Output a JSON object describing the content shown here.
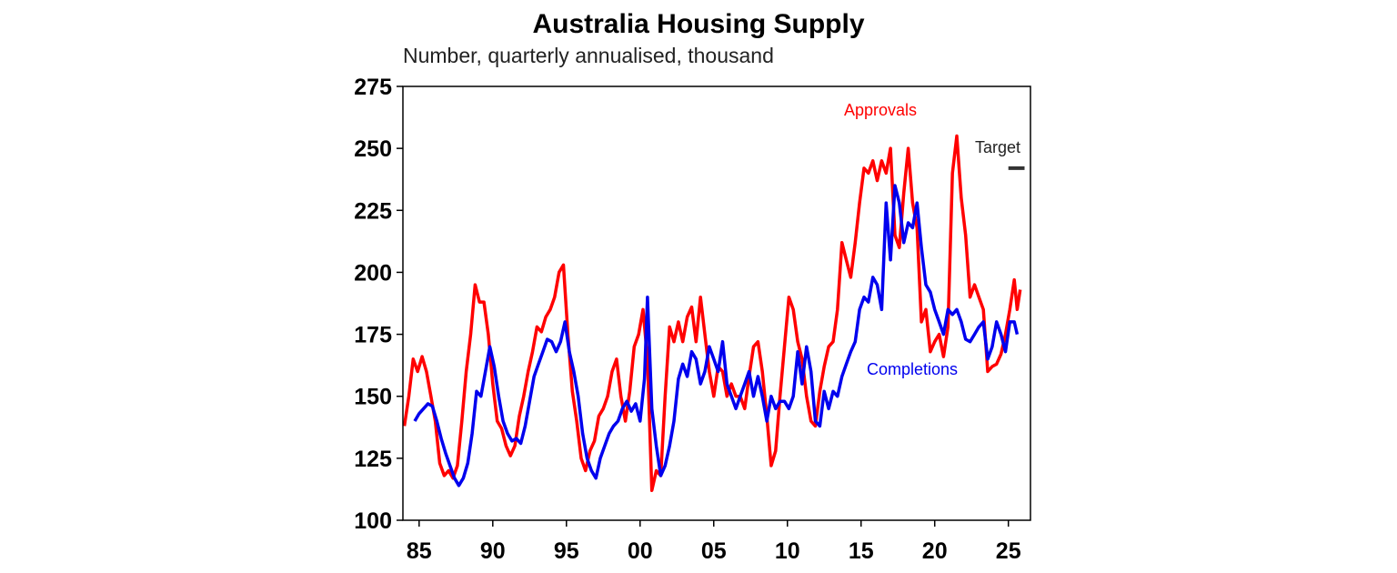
{
  "chart_data": {
    "type": "line",
    "title": "Australia Housing Supply",
    "subtitle": "Number, quarterly annualised, thousand",
    "ylim": [
      100,
      275
    ],
    "yticks": [
      "100",
      "125",
      "150",
      "175",
      "200",
      "225",
      "250",
      "275"
    ],
    "xlim": [
      1983.9,
      2026.5
    ],
    "xticks": [
      {
        "x": 1985,
        "label": "85"
      },
      {
        "x": 1990,
        "label": "90"
      },
      {
        "x": 1995,
        "label": "95"
      },
      {
        "x": 2000,
        "label": "00"
      },
      {
        "x": 2005,
        "label": "05"
      },
      {
        "x": 2010,
        "label": "10"
      },
      {
        "x": 2015,
        "label": "15"
      },
      {
        "x": 2020,
        "label": "20"
      },
      {
        "x": 2025,
        "label": "25"
      }
    ],
    "grid": false,
    "series": [
      {
        "name": "Approvals",
        "color": "#ff0000",
        "points": [
          [
            1984.0,
            138
          ],
          [
            1984.3,
            150
          ],
          [
            1984.6,
            165
          ],
          [
            1984.9,
            160
          ],
          [
            1985.2,
            166
          ],
          [
            1985.5,
            160
          ],
          [
            1985.8,
            150
          ],
          [
            1986.1,
            140
          ],
          [
            1986.4,
            123
          ],
          [
            1986.7,
            118
          ],
          [
            1987.0,
            120
          ],
          [
            1987.3,
            117
          ],
          [
            1987.6,
            122
          ],
          [
            1987.9,
            140
          ],
          [
            1988.2,
            160
          ],
          [
            1988.5,
            175
          ],
          [
            1988.8,
            195
          ],
          [
            1989.1,
            188
          ],
          [
            1989.4,
            188
          ],
          [
            1989.7,
            175
          ],
          [
            1990.0,
            155
          ],
          [
            1990.3,
            140
          ],
          [
            1990.6,
            137
          ],
          [
            1990.9,
            130
          ],
          [
            1991.2,
            126
          ],
          [
            1991.5,
            130
          ],
          [
            1991.8,
            142
          ],
          [
            1992.1,
            150
          ],
          [
            1992.4,
            160
          ],
          [
            1992.7,
            168
          ],
          [
            1993.0,
            178
          ],
          [
            1993.3,
            176
          ],
          [
            1993.6,
            182
          ],
          [
            1993.9,
            185
          ],
          [
            1994.2,
            190
          ],
          [
            1994.5,
            200
          ],
          [
            1994.8,
            203
          ],
          [
            1995.1,
            175
          ],
          [
            1995.4,
            152
          ],
          [
            1995.7,
            140
          ],
          [
            1996.0,
            125
          ],
          [
            1996.3,
            120
          ],
          [
            1996.6,
            128
          ],
          [
            1996.9,
            132
          ],
          [
            1997.2,
            142
          ],
          [
            1997.5,
            145
          ],
          [
            1997.8,
            150
          ],
          [
            1998.1,
            160
          ],
          [
            1998.4,
            165
          ],
          [
            1998.7,
            150
          ],
          [
            1999.0,
            140
          ],
          [
            1999.3,
            152
          ],
          [
            1999.6,
            170
          ],
          [
            1999.9,
            175
          ],
          [
            2000.2,
            185
          ],
          [
            2000.5,
            165
          ],
          [
            2000.8,
            112
          ],
          [
            2001.1,
            120
          ],
          [
            2001.4,
            118
          ],
          [
            2001.7,
            150
          ],
          [
            2002.0,
            178
          ],
          [
            2002.3,
            172
          ],
          [
            2002.6,
            180
          ],
          [
            2002.9,
            172
          ],
          [
            2003.2,
            182
          ],
          [
            2003.5,
            186
          ],
          [
            2003.8,
            172
          ],
          [
            2004.1,
            190
          ],
          [
            2004.4,
            175
          ],
          [
            2004.7,
            160
          ],
          [
            2005.0,
            150
          ],
          [
            2005.3,
            162
          ],
          [
            2005.6,
            160
          ],
          [
            2005.9,
            150
          ],
          [
            2006.2,
            155
          ],
          [
            2006.5,
            150
          ],
          [
            2006.8,
            150
          ],
          [
            2007.1,
            145
          ],
          [
            2007.4,
            158
          ],
          [
            2007.7,
            170
          ],
          [
            2008.0,
            172
          ],
          [
            2008.3,
            160
          ],
          [
            2008.6,
            142
          ],
          [
            2008.9,
            122
          ],
          [
            2009.2,
            128
          ],
          [
            2009.5,
            150
          ],
          [
            2009.8,
            170
          ],
          [
            2010.1,
            190
          ],
          [
            2010.4,
            185
          ],
          [
            2010.7,
            172
          ],
          [
            2011.0,
            165
          ],
          [
            2011.3,
            150
          ],
          [
            2011.6,
            140
          ],
          [
            2011.9,
            138
          ],
          [
            2012.2,
            152
          ],
          [
            2012.5,
            162
          ],
          [
            2012.8,
            170
          ],
          [
            2013.1,
            172
          ],
          [
            2013.4,
            185
          ],
          [
            2013.7,
            212
          ],
          [
            2014.0,
            205
          ],
          [
            2014.3,
            198
          ],
          [
            2014.6,
            212
          ],
          [
            2014.9,
            228
          ],
          [
            2015.2,
            242
          ],
          [
            2015.5,
            240
          ],
          [
            2015.8,
            245
          ],
          [
            2016.1,
            237
          ],
          [
            2016.4,
            245
          ],
          [
            2016.7,
            240
          ],
          [
            2017.0,
            250
          ],
          [
            2017.3,
            215
          ],
          [
            2017.6,
            210
          ],
          [
            2017.9,
            232
          ],
          [
            2018.2,
            250
          ],
          [
            2018.5,
            228
          ],
          [
            2018.8,
            218
          ],
          [
            2019.1,
            180
          ],
          [
            2019.4,
            185
          ],
          [
            2019.7,
            168
          ],
          [
            2020.0,
            172
          ],
          [
            2020.3,
            175
          ],
          [
            2020.6,
            166
          ],
          [
            2020.9,
            178
          ],
          [
            2021.2,
            240
          ],
          [
            2021.5,
            255
          ],
          [
            2021.8,
            230
          ],
          [
            2022.1,
            215
          ],
          [
            2022.4,
            190
          ],
          [
            2022.7,
            195
          ],
          [
            2023.0,
            190
          ],
          [
            2023.3,
            185
          ],
          [
            2023.6,
            160
          ],
          [
            2023.9,
            162
          ],
          [
            2024.2,
            163
          ],
          [
            2024.5,
            167
          ],
          [
            2024.8,
            175
          ],
          [
            2025.1,
            185
          ],
          [
            2025.4,
            197
          ],
          [
            2025.6,
            185
          ],
          [
            2025.8,
            193
          ]
        ]
      },
      {
        "name": "Completions",
        "color": "#0000ee",
        "points": [
          [
            1984.7,
            140
          ],
          [
            1985.0,
            143
          ],
          [
            1985.3,
            145
          ],
          [
            1985.6,
            147
          ],
          [
            1985.9,
            146
          ],
          [
            1986.2,
            140
          ],
          [
            1986.5,
            133
          ],
          [
            1986.8,
            127
          ],
          [
            1987.1,
            122
          ],
          [
            1987.4,
            117
          ],
          [
            1987.7,
            114
          ],
          [
            1988.0,
            117
          ],
          [
            1988.3,
            123
          ],
          [
            1988.6,
            135
          ],
          [
            1988.9,
            152
          ],
          [
            1989.2,
            150
          ],
          [
            1989.5,
            160
          ],
          [
            1989.8,
            170
          ],
          [
            1990.1,
            162
          ],
          [
            1990.4,
            150
          ],
          [
            1990.7,
            140
          ],
          [
            1991.0,
            135
          ],
          [
            1991.3,
            132
          ],
          [
            1991.6,
            133
          ],
          [
            1991.9,
            131
          ],
          [
            1992.2,
            138
          ],
          [
            1992.5,
            148
          ],
          [
            1992.8,
            158
          ],
          [
            1993.1,
            163
          ],
          [
            1993.4,
            168
          ],
          [
            1993.7,
            173
          ],
          [
            1994.0,
            172
          ],
          [
            1994.3,
            168
          ],
          [
            1994.6,
            172
          ],
          [
            1994.9,
            180
          ],
          [
            1995.2,
            168
          ],
          [
            1995.5,
            160
          ],
          [
            1995.8,
            150
          ],
          [
            1996.1,
            135
          ],
          [
            1996.4,
            125
          ],
          [
            1996.7,
            120
          ],
          [
            1997.0,
            117
          ],
          [
            1997.3,
            125
          ],
          [
            1997.6,
            130
          ],
          [
            1997.9,
            135
          ],
          [
            1998.2,
            138
          ],
          [
            1998.5,
            140
          ],
          [
            1998.8,
            145
          ],
          [
            1999.1,
            148
          ],
          [
            1999.4,
            144
          ],
          [
            1999.7,
            147
          ],
          [
            2000.0,
            140
          ],
          [
            2000.3,
            157
          ],
          [
            2000.5,
            190
          ],
          [
            2000.8,
            145
          ],
          [
            2001.1,
            130
          ],
          [
            2001.4,
            118
          ],
          [
            2001.7,
            122
          ],
          [
            2002.0,
            130
          ],
          [
            2002.3,
            140
          ],
          [
            2002.6,
            157
          ],
          [
            2002.9,
            163
          ],
          [
            2003.2,
            158
          ],
          [
            2003.5,
            168
          ],
          [
            2003.8,
            165
          ],
          [
            2004.1,
            155
          ],
          [
            2004.4,
            160
          ],
          [
            2004.7,
            170
          ],
          [
            2005.0,
            165
          ],
          [
            2005.3,
            160
          ],
          [
            2005.6,
            172
          ],
          [
            2005.9,
            155
          ],
          [
            2006.2,
            150
          ],
          [
            2006.5,
            145
          ],
          [
            2006.8,
            150
          ],
          [
            2007.1,
            155
          ],
          [
            2007.4,
            160
          ],
          [
            2007.7,
            150
          ],
          [
            2008.0,
            158
          ],
          [
            2008.3,
            150
          ],
          [
            2008.6,
            140
          ],
          [
            2008.9,
            150
          ],
          [
            2009.2,
            145
          ],
          [
            2009.5,
            148
          ],
          [
            2009.8,
            148
          ],
          [
            2010.1,
            145
          ],
          [
            2010.4,
            150
          ],
          [
            2010.7,
            168
          ],
          [
            2011.0,
            155
          ],
          [
            2011.3,
            170
          ],
          [
            2011.6,
            160
          ],
          [
            2011.9,
            140
          ],
          [
            2012.2,
            138
          ],
          [
            2012.5,
            152
          ],
          [
            2012.8,
            145
          ],
          [
            2013.1,
            152
          ],
          [
            2013.4,
            150
          ],
          [
            2013.7,
            158
          ],
          [
            2014.0,
            163
          ],
          [
            2014.3,
            168
          ],
          [
            2014.6,
            172
          ],
          [
            2014.9,
            185
          ],
          [
            2015.2,
            190
          ],
          [
            2015.5,
            188
          ],
          [
            2015.8,
            198
          ],
          [
            2016.1,
            195
          ],
          [
            2016.4,
            185
          ],
          [
            2016.7,
            228
          ],
          [
            2017.0,
            205
          ],
          [
            2017.3,
            235
          ],
          [
            2017.6,
            228
          ],
          [
            2017.9,
            212
          ],
          [
            2018.2,
            220
          ],
          [
            2018.5,
            218
          ],
          [
            2018.8,
            228
          ],
          [
            2019.1,
            210
          ],
          [
            2019.4,
            195
          ],
          [
            2019.7,
            192
          ],
          [
            2020.0,
            185
          ],
          [
            2020.3,
            180
          ],
          [
            2020.6,
            175
          ],
          [
            2020.9,
            185
          ],
          [
            2021.2,
            183
          ],
          [
            2021.5,
            185
          ],
          [
            2021.8,
            180
          ],
          [
            2022.1,
            173
          ],
          [
            2022.4,
            172
          ],
          [
            2022.7,
            175
          ],
          [
            2023.0,
            178
          ],
          [
            2023.3,
            180
          ],
          [
            2023.6,
            165
          ],
          [
            2023.9,
            170
          ],
          [
            2024.2,
            180
          ],
          [
            2024.5,
            175
          ],
          [
            2024.8,
            168
          ],
          [
            2025.1,
            180
          ],
          [
            2025.4,
            180
          ],
          [
            2025.6,
            175
          ]
        ]
      },
      {
        "name": "Target",
        "color": "#333333",
        "points": [
          [
            2025.0,
            242
          ],
          [
            2026.1,
            242
          ]
        ]
      }
    ],
    "annotations": [
      {
        "text": "Approvals",
        "color": "#ff0000"
      },
      {
        "text": "Completions",
        "color": "#0000ee"
      },
      {
        "text": "Target",
        "color": "#222222"
      }
    ]
  }
}
